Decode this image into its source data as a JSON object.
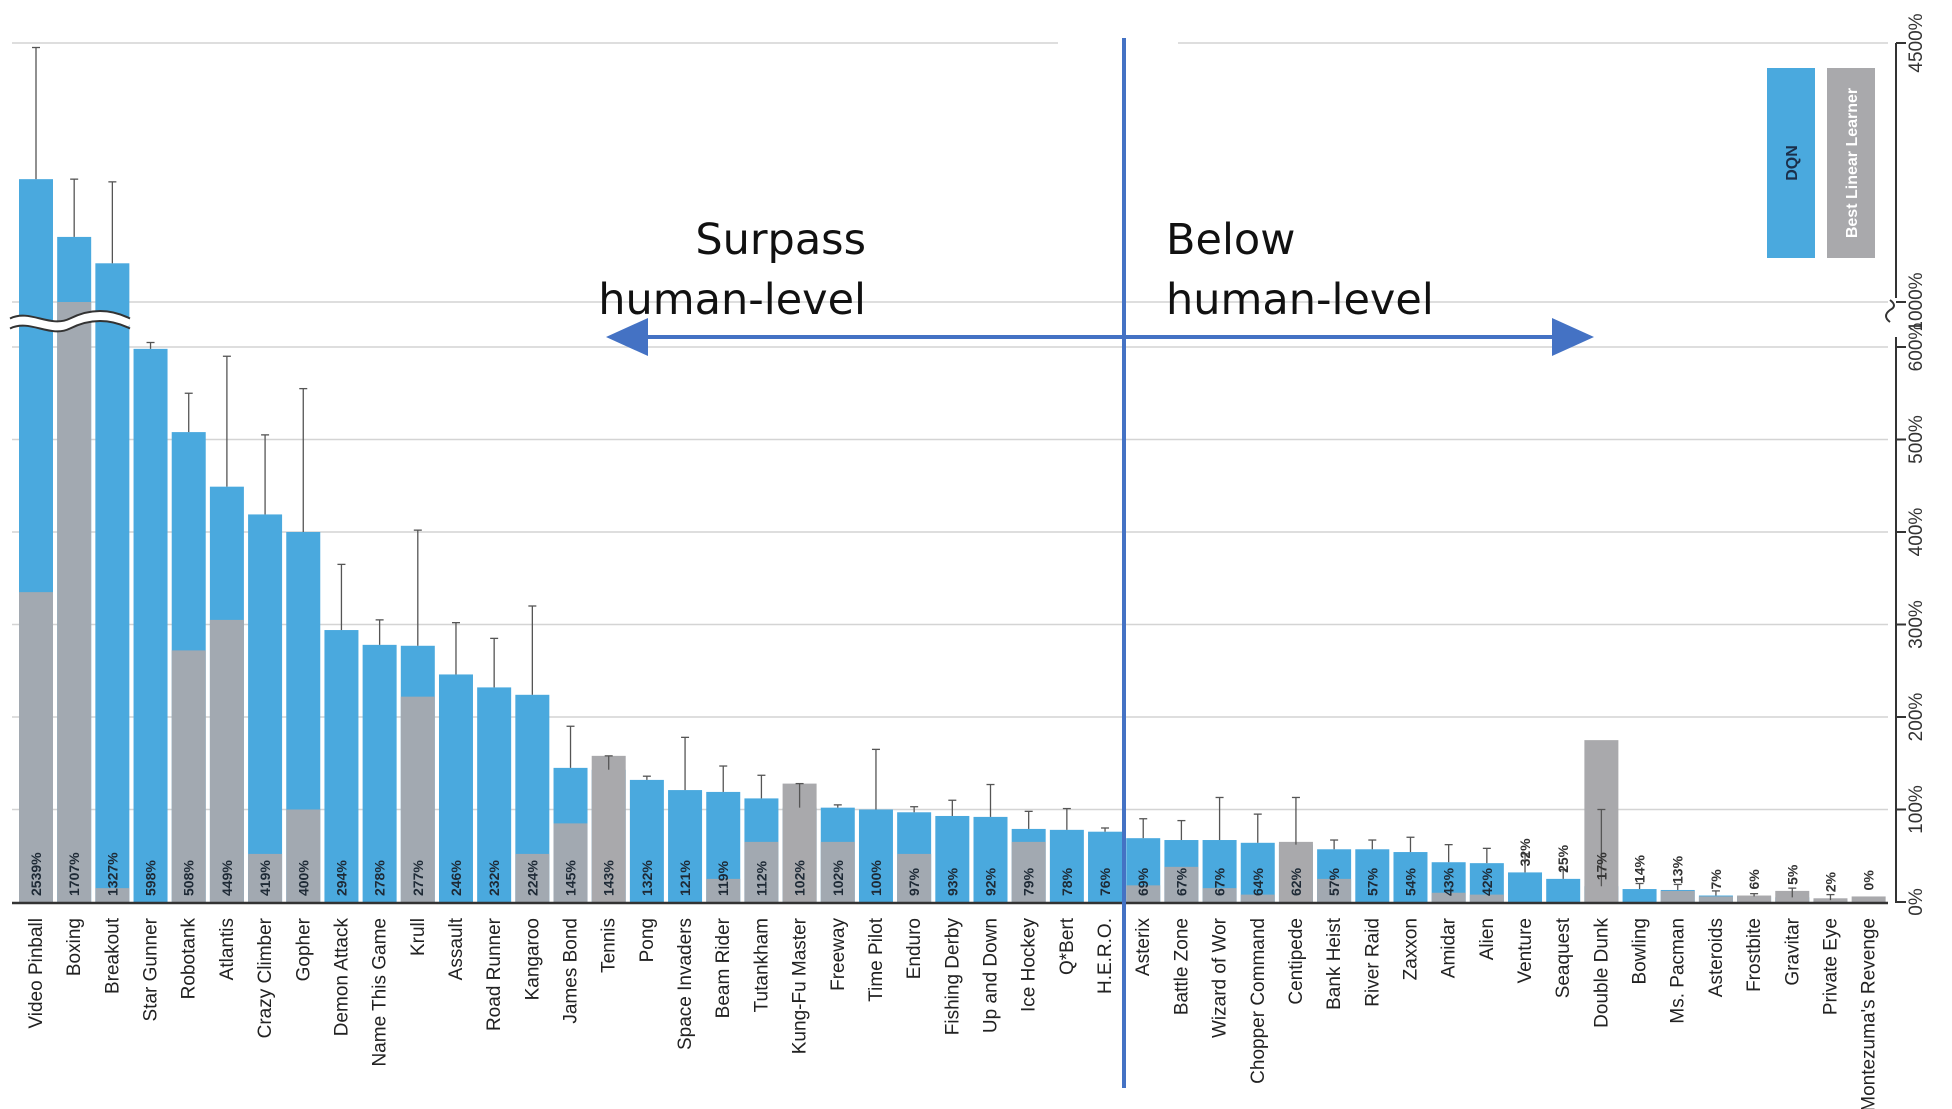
{
  "chart_data": {
    "type": "bar",
    "categories": [
      "Video Pinball",
      "Boxing",
      "Breakout",
      "Star Gunner",
      "Robotank",
      "Atlantis",
      "Crazy Climber",
      "Gopher",
      "Demon Attack",
      "Name This Game",
      "Krull",
      "Assault",
      "Road Runner",
      "Kangaroo",
      "James Bond",
      "Tennis",
      "Pong",
      "Space Invaders",
      "Beam Rider",
      "Tutankham",
      "Kung-Fu Master",
      "Freeway",
      "Time Pilot",
      "Enduro",
      "Fishing Derby",
      "Up and Down",
      "Ice Hockey",
      "Q*Bert",
      "H.E.R.O.",
      "Asterix",
      "Battle Zone",
      "Wizard of Wor",
      "Chopper Command",
      "Centipede",
      "Bank Heist",
      "River Raid",
      "Zaxxon",
      "Amidar",
      "Alien",
      "Venture",
      "Seaquest",
      "Double Dunk",
      "Bowling",
      "Ms. Pacman",
      "Asteroids",
      "Frostbite",
      "Gravitar",
      "Private Eye",
      "Montezuma's Revenge"
    ],
    "series": [
      {
        "name": "DQN",
        "color": "#4aa9de",
        "values": [
          2539,
          1707,
          1327,
          598,
          508,
          449,
          419,
          400,
          294,
          278,
          277,
          246,
          232,
          224,
          145,
          143,
          132,
          121,
          119,
          112,
          102,
          102,
          100,
          97,
          93,
          92,
          79,
          78,
          76,
          69,
          67,
          67,
          64,
          62,
          57,
          57,
          54,
          43,
          42,
          32,
          25,
          17,
          14,
          13,
          7,
          6,
          5,
          2,
          0
        ]
      },
      {
        "name": "Best Linear Learner",
        "color": "#a9a9ac",
        "values": [
          335,
          1000,
          15,
          0,
          272,
          305,
          52,
          100,
          0,
          0,
          222,
          0,
          0,
          52,
          85,
          158,
          0,
          0,
          25,
          65,
          128,
          65,
          0,
          52,
          0,
          0,
          65,
          0,
          0,
          18,
          38,
          15,
          8,
          65,
          25,
          0,
          0,
          10,
          8,
          0,
          0,
          175,
          0,
          12,
          6,
          7,
          12,
          4,
          6
        ]
      }
    ],
    "labels": [
      "2539%",
      "1707%",
      "1327%",
      "598%",
      "508%",
      "449%",
      "419%",
      "400%",
      "294%",
      "278%",
      "277%",
      "246%",
      "232%",
      "224%",
      "145%",
      "143%",
      "132%",
      "121%",
      "119%",
      "112%",
      "102%",
      "102%",
      "100%",
      "97%",
      "93%",
      "92%",
      "79%",
      "78%",
      "76%",
      "69%",
      "67%",
      "67%",
      "64%",
      "62%",
      "57%",
      "57%",
      "54%",
      "43%",
      "42%",
      "32%",
      "25%",
      "17%",
      "14%",
      "13%",
      "7%",
      "6%",
      "5%",
      "2%",
      "0%"
    ],
    "error_tops": [
      4435,
      2539,
      2500,
      640,
      550,
      590,
      505,
      555,
      365,
      305,
      402,
      302,
      285,
      320,
      190,
      158,
      136,
      178,
      147,
      137,
      128,
      105,
      165,
      103,
      110,
      127,
      98,
      101,
      80,
      90,
      88,
      113,
      95,
      113,
      67,
      67,
      70,
      62,
      58,
      52,
      35,
      100,
      20,
      19,
      12,
      9,
      15,
      8,
      0
    ],
    "y_ticks": [
      "0%",
      "100%",
      "200%",
      "300%",
      "400%",
      "500%",
      "600%",
      "1000%",
      "4500%"
    ],
    "y_tick_values": [
      0,
      100,
      200,
      300,
      400,
      500,
      600,
      1000,
      4500
    ],
    "y_axis_break": [
      600,
      1000
    ],
    "grid": true,
    "legend_position": "top-right"
  },
  "annotations": {
    "left": "Surpass\nhuman-level",
    "right": "Below\nhuman-level"
  },
  "colors": {
    "divider": "#4472c4",
    "grid": "#d4d4d4",
    "axis": "#333333"
  }
}
